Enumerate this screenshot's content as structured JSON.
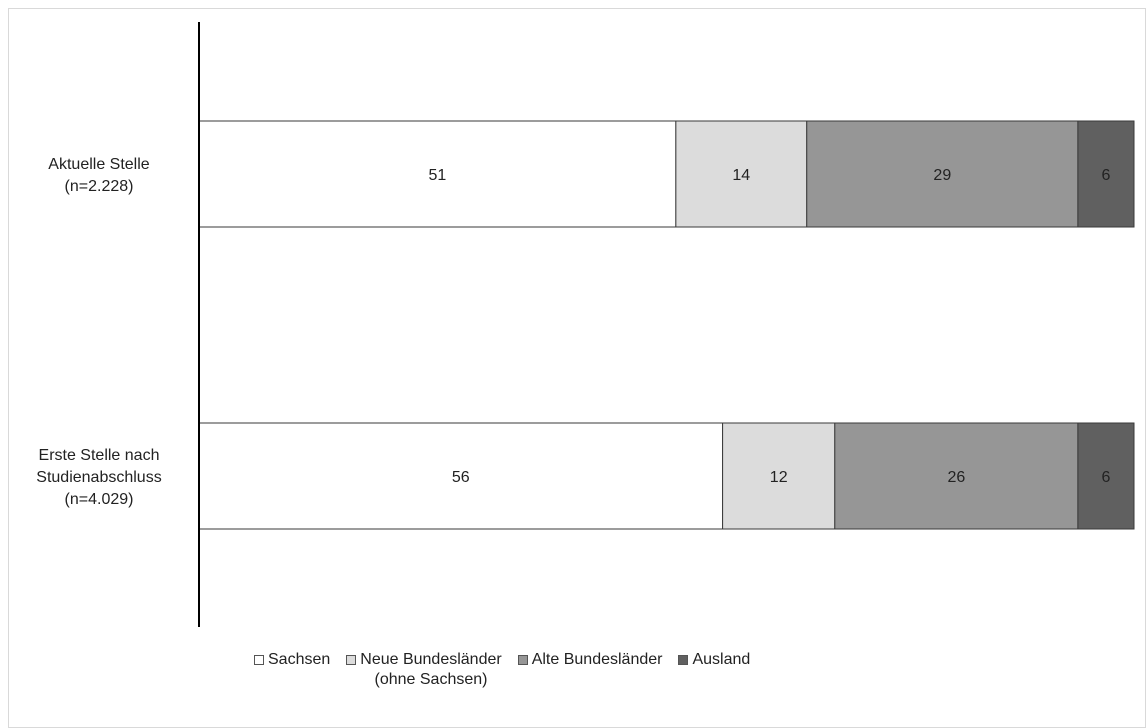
{
  "chart_data": {
    "type": "bar",
    "orientation": "horizontal",
    "stacked": true,
    "title": "",
    "xlabel": "",
    "ylabel": "",
    "xlim": [
      0,
      100
    ],
    "categories": [
      "Aktuelle Stelle\n(n=2.228)",
      "Erste Stelle nach\nStudienabschluss\n(n=4.029)"
    ],
    "series": [
      {
        "name": "Sachsen",
        "values": [
          51,
          56
        ],
        "color": "#ffffff"
      },
      {
        "name": "Neue Bundesländer\n(ohne Sachsen)",
        "values": [
          14,
          12
        ],
        "color": "#dcdcdc"
      },
      {
        "name": "Alte Bundesländer",
        "values": [
          29,
          26
        ],
        "color": "#969696"
      },
      {
        "name": "Ausland",
        "values": [
          6,
          6
        ],
        "color": "#606060"
      }
    ],
    "legend_position": "bottom",
    "grid": false,
    "data_labels": true
  }
}
